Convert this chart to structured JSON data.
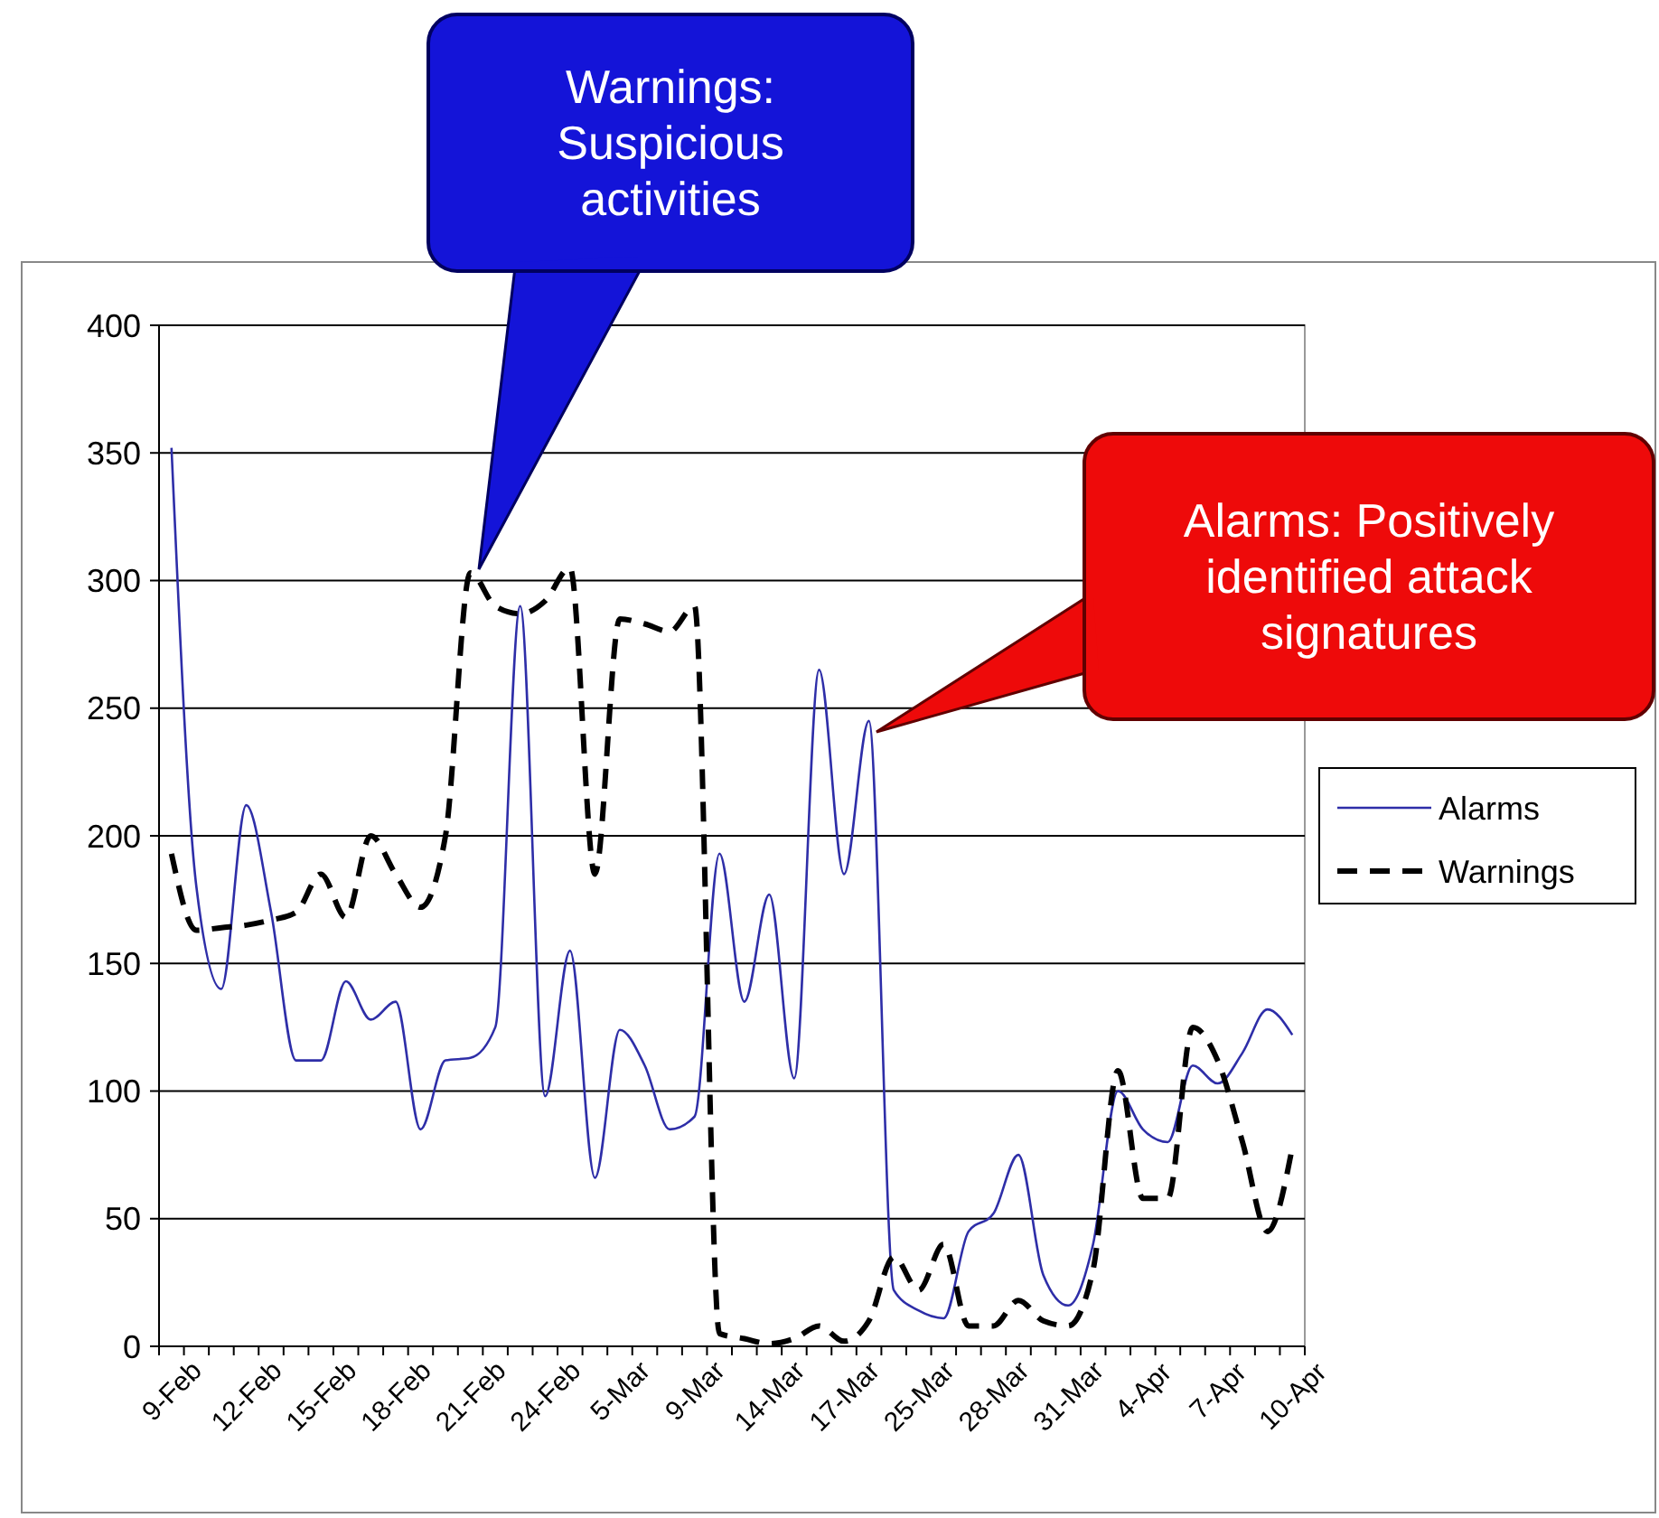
{
  "chart_data": {
    "type": "line",
    "categories": [
      "9-Feb",
      null,
      null,
      "12-Feb",
      null,
      null,
      "15-Feb",
      null,
      null,
      "18-Feb",
      null,
      null,
      "21-Feb",
      null,
      null,
      "24-Feb",
      null,
      null,
      "5-Mar",
      null,
      null,
      "9-Mar",
      null,
      null,
      "14-Mar",
      null,
      null,
      "17-Mar",
      null,
      null,
      "25-Mar",
      null,
      null,
      "28-Mar",
      null,
      null,
      "31-Mar",
      null,
      null,
      "4-Apr",
      null,
      null,
      "7-Apr",
      null,
      null,
      "10-Apr"
    ],
    "series": [
      {
        "name": "Alarms",
        "color": "#2e2ea8",
        "line_style": "solid",
        "values": [
          352,
          180,
          140,
          212,
          170,
          112,
          112,
          143,
          128,
          135,
          85,
          112,
          113,
          125,
          290,
          98,
          155,
          66,
          124,
          110,
          85,
          90,
          193,
          135,
          177,
          105,
          265,
          185,
          245,
          22,
          14,
          11,
          45,
          52,
          75,
          28,
          16,
          40,
          100,
          85,
          80,
          110,
          103,
          115,
          132,
          122
        ]
      },
      {
        "name": "Warnings",
        "color": "#000000",
        "line_style": "dashed",
        "values": [
          193,
          163,
          164,
          165,
          167,
          170,
          185,
          168,
          200,
          185,
          172,
          200,
          303,
          290,
          287,
          292,
          305,
          185,
          285,
          283,
          280,
          290,
          5,
          3,
          1,
          3,
          8,
          2,
          10,
          35,
          22,
          40,
          8,
          8,
          18,
          10,
          8,
          30,
          108,
          58,
          58,
          125,
          112,
          80,
          45,
          78
        ]
      }
    ],
    "ylim": [
      0,
      400
    ],
    "yticks": [
      0,
      50,
      100,
      150,
      200,
      250,
      300,
      350,
      400
    ],
    "grid": "y",
    "legend": "right",
    "annotations": [
      "Warnings: Suspicious activities",
      "Alarms: Positively identified attack signatures"
    ]
  }
}
